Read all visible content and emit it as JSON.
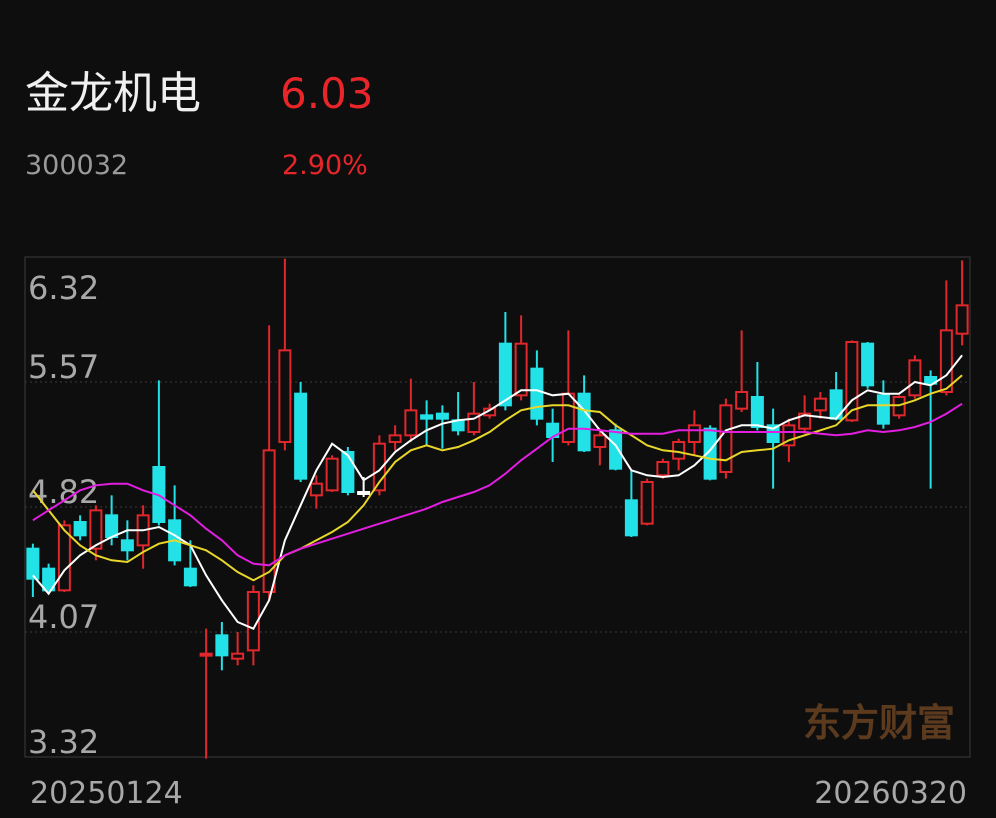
{
  "header": {
    "name": "金龙机电",
    "price": "6.03",
    "code": "300032",
    "change": "2.90%"
  },
  "watermark": "东方财富",
  "chart_data": {
    "type": "candlestick",
    "categories": [
      "20250124",
      null,
      null,
      null,
      null,
      null,
      null,
      null,
      null,
      null,
      null,
      null,
      null,
      null,
      null,
      null,
      null,
      null,
      null,
      null,
      null,
      null,
      null,
      null,
      null,
      null,
      null,
      null,
      null,
      null,
      null,
      null,
      null,
      null,
      null,
      null,
      null,
      null,
      null,
      null,
      null,
      null,
      null,
      null,
      null,
      null,
      null,
      null,
      null,
      null,
      null,
      null,
      null,
      null,
      null,
      null,
      null,
      null,
      null,
      "20260320"
    ],
    "open": [
      4.57,
      4.45,
      4.32,
      4.73,
      4.57,
      4.77,
      4.62,
      4.59,
      5.06,
      4.74,
      4.45,
      3.93,
      4.05,
      3.91,
      3.96,
      4.31,
      5.21,
      5.5,
      4.89,
      4.92,
      5.15,
      4.91,
      4.92,
      5.21,
      5.25,
      5.37,
      5.38,
      5.34,
      5.27,
      5.37,
      5.8,
      5.49,
      5.65,
      5.32,
      5.21,
      5.5,
      5.18,
      5.28,
      4.86,
      4.72,
      5.01,
      5.11,
      5.21,
      5.29,
      5.03,
      5.41,
      5.48,
      5.31,
      5.19,
      5.29,
      5.4,
      5.52,
      5.34,
      5.8,
      5.49,
      5.37,
      5.49,
      5.6,
      5.51,
      5.86
    ],
    "high": [
      4.6,
      4.48,
      4.74,
      4.77,
      4.83,
      4.89,
      4.74,
      4.83,
      5.58,
      4.95,
      4.62,
      4.09,
      4.13,
      4.07,
      4.35,
      5.91,
      6.31,
      5.57,
      5.01,
      5.13,
      5.18,
      5.0,
      5.25,
      5.31,
      5.59,
      5.46,
      5.43,
      5.51,
      5.57,
      5.44,
      5.99,
      5.97,
      5.76,
      5.41,
      5.88,
      5.61,
      5.29,
      5.32,
      5.04,
      4.99,
      5.11,
      5.23,
      5.4,
      5.31,
      5.47,
      5.88,
      5.69,
      5.41,
      5.35,
      5.49,
      5.51,
      5.63,
      5.82,
      5.81,
      5.58,
      5.49,
      5.73,
      5.64,
      6.18,
      6.3
    ],
    "low": [
      4.28,
      4.3,
      4.31,
      4.62,
      4.5,
      4.59,
      4.5,
      4.45,
      4.71,
      4.47,
      4.34,
      3.31,
      3.84,
      3.87,
      3.87,
      4.26,
      5.16,
      4.97,
      4.81,
      4.91,
      4.89,
      4.88,
      4.89,
      5.16,
      5.21,
      5.19,
      5.17,
      5.25,
      5.25,
      5.35,
      5.4,
      5.46,
      5.31,
      5.09,
      5.19,
      5.15,
      5.07,
      5.04,
      4.64,
      4.71,
      4.99,
      5.04,
      5.13,
      4.98,
      4.99,
      5.39,
      5.28,
      4.93,
      5.09,
      5.26,
      5.35,
      5.34,
      5.33,
      5.53,
      5.29,
      5.35,
      5.47,
      4.93,
      5.49,
      5.79
    ],
    "close": [
      4.39,
      4.32,
      4.71,
      4.65,
      4.8,
      4.64,
      4.56,
      4.77,
      4.73,
      4.5,
      4.35,
      3.94,
      3.93,
      3.94,
      4.31,
      5.16,
      5.76,
      4.99,
      4.96,
      5.11,
      4.91,
      4.91,
      5.2,
      5.25,
      5.4,
      5.35,
      5.35,
      5.28,
      5.38,
      5.41,
      5.43,
      5.8,
      5.35,
      5.24,
      5.5,
      5.16,
      5.25,
      5.05,
      4.65,
      4.97,
      5.09,
      5.21,
      5.31,
      4.99,
      5.43,
      5.51,
      5.3,
      5.21,
      5.31,
      5.38,
      5.47,
      5.35,
      5.81,
      5.55,
      5.32,
      5.48,
      5.7,
      5.56,
      5.88,
      6.03
    ],
    "up_color": "#e0282c",
    "down_color": "#22e2e8",
    "flat_color": "#ffffff",
    "lines": [
      {
        "color": "#ffffff",
        "values": [
          4.41,
          4.3,
          4.44,
          4.53,
          4.59,
          4.64,
          4.68,
          4.68,
          4.7,
          4.65,
          4.59,
          4.41,
          4.26,
          4.13,
          4.09,
          4.26,
          4.62,
          4.83,
          5.04,
          5.2,
          5.13,
          4.98,
          5.04,
          5.15,
          5.22,
          5.28,
          5.32,
          5.34,
          5.35,
          5.4,
          5.46,
          5.52,
          5.52,
          5.49,
          5.5,
          5.4,
          5.28,
          5.19,
          5.04,
          5.01,
          5.0,
          5.01,
          5.07,
          5.16,
          5.28,
          5.31,
          5.31,
          5.29,
          5.34,
          5.37,
          5.36,
          5.35,
          5.46,
          5.52,
          5.5,
          5.5,
          5.57,
          5.55,
          5.61,
          5.73
        ]
      },
      {
        "color": "#e8d62a",
        "values": [
          4.92,
          4.8,
          4.68,
          4.59,
          4.53,
          4.5,
          4.49,
          4.55,
          4.6,
          4.62,
          4.59,
          4.56,
          4.5,
          4.43,
          4.38,
          4.43,
          4.53,
          4.57,
          4.62,
          4.67,
          4.73,
          4.83,
          4.97,
          5.09,
          5.16,
          5.19,
          5.16,
          5.18,
          5.22,
          5.27,
          5.34,
          5.4,
          5.42,
          5.43,
          5.43,
          5.4,
          5.39,
          5.31,
          5.25,
          5.19,
          5.16,
          5.15,
          5.13,
          5.11,
          5.1,
          5.15,
          5.16,
          5.17,
          5.22,
          5.25,
          5.28,
          5.31,
          5.4,
          5.43,
          5.43,
          5.43,
          5.46,
          5.5,
          5.53,
          5.61
        ]
      },
      {
        "color": "#e21ee0",
        "values": [
          4.74,
          4.8,
          4.86,
          4.92,
          4.95,
          4.96,
          4.96,
          4.92,
          4.89,
          4.83,
          4.77,
          4.69,
          4.62,
          4.53,
          4.48,
          4.47,
          4.53,
          4.57,
          4.6,
          4.63,
          4.66,
          4.69,
          4.72,
          4.75,
          4.78,
          4.81,
          4.85,
          4.88,
          4.91,
          4.95,
          5.02,
          5.1,
          5.17,
          5.24,
          5.29,
          5.29,
          5.28,
          5.27,
          5.26,
          5.26,
          5.26,
          5.28,
          5.28,
          5.28,
          5.27,
          5.27,
          5.27,
          5.27,
          5.27,
          5.27,
          5.26,
          5.25,
          5.26,
          5.28,
          5.27,
          5.28,
          5.3,
          5.33,
          5.38,
          5.44
        ]
      }
    ],
    "ylim": [
      3.32,
      6.32
    ],
    "yticks": [
      6.32,
      5.57,
      4.82,
      4.07,
      3.32
    ],
    "grid": true
  }
}
